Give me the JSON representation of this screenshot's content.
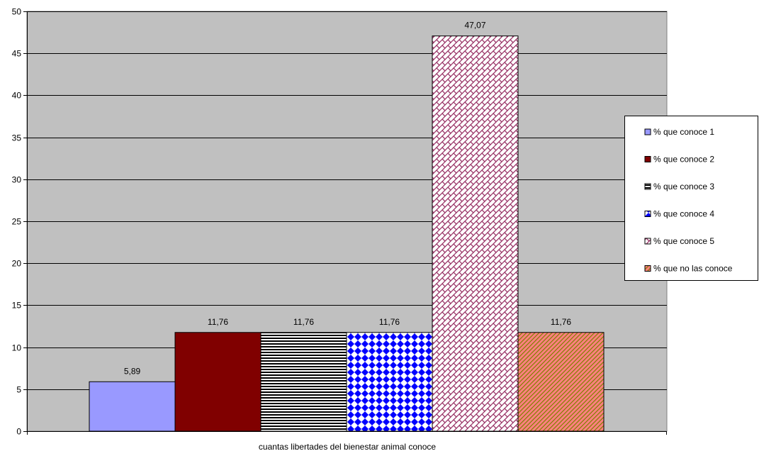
{
  "chart_data": {
    "type": "bar",
    "title": "",
    "xlabel": "cuantas libertades del bienestar animal conoce",
    "ylabel": "",
    "ylim": [
      0,
      50
    ],
    "yticks": [
      "0",
      "5",
      "10",
      "15",
      "20",
      "25",
      "30",
      "35",
      "40",
      "45",
      "50"
    ],
    "grid": true,
    "legend_position": "right",
    "series": [
      {
        "name": "% que conoce 1",
        "value": 5.89,
        "label": "5,89",
        "color": "#9999ff",
        "pattern": "solid"
      },
      {
        "name": "% que conoce 2",
        "value": 11.76,
        "label": "11,76",
        "color": "#800000",
        "pattern": "solid"
      },
      {
        "name": "% que conoce 3",
        "value": 11.76,
        "label": "11,76",
        "color": "#000000",
        "pattern": "horizontal-stripes"
      },
      {
        "name": "% que conoce 4",
        "value": 11.76,
        "label": "11,76",
        "color": "#0000ff",
        "pattern": "checker-diamond"
      },
      {
        "name": "% que conoce 5",
        "value": 47.07,
        "label": "47,07",
        "color": "#993366",
        "pattern": "weave"
      },
      {
        "name": "% que no las conoce",
        "value": 11.76,
        "label": "11,76",
        "color": "#ff8080",
        "pattern": "diagonal-hatch"
      }
    ],
    "colors": {
      "plot_background": "#c0c0c0",
      "gridline": "#000000"
    }
  }
}
